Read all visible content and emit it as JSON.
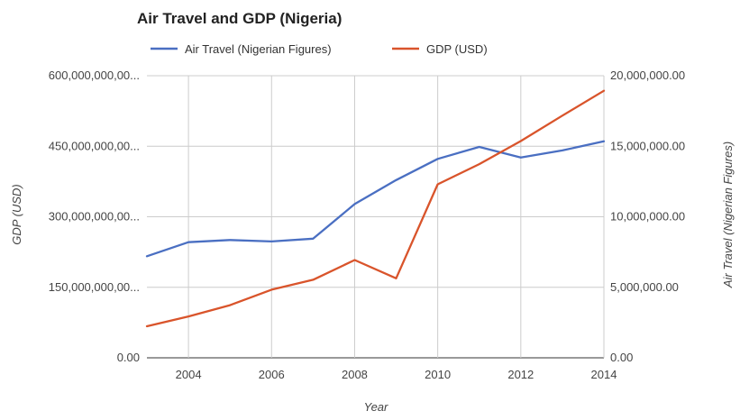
{
  "chart_data": {
    "type": "line",
    "title": "Air Travel and GDP (Nigeria)",
    "xlabel": "Year",
    "ylabel_left": "GDP (USD)",
    "ylabel_right": "Air Travel (Nigerian Figures)",
    "x": [
      2003,
      2004,
      2005,
      2006,
      2007,
      2008,
      2009,
      2010,
      2011,
      2012,
      2013,
      2014
    ],
    "x_ticks": [
      "2004",
      "2006",
      "2008",
      "2010",
      "2012",
      "2014"
    ],
    "y_left_ticks": [
      "0.00",
      "150,000,000,00...",
      "300,000,000,00...",
      "450,000,000,00...",
      "600,000,000,00..."
    ],
    "y_right_ticks": [
      "0.00",
      "5,000,000.00",
      "10,000,000.00",
      "15,000,000.00",
      "20,000,000.00"
    ],
    "ylim_left": [
      0,
      600000000000
    ],
    "ylim_right": [
      0,
      20000000
    ],
    "xlim": [
      2003,
      2014
    ],
    "grid": true,
    "legend_position": "top",
    "series": [
      {
        "name": "Air Travel (Nigerian Figures)",
        "axis": "right",
        "color": "#4a6fc2",
        "values": [
          7200000,
          8200000,
          8350000,
          8250000,
          8450000,
          10900000,
          12600000,
          14100000,
          14950000,
          14200000,
          14700000,
          15350000
        ]
      },
      {
        "name": "GDP (USD)",
        "axis": "left",
        "color": "#d9542b",
        "values": [
          67000000000,
          88000000000,
          112000000000,
          145000000000,
          166000000000,
          208000000000,
          169000000000,
          369000000000,
          412000000000,
          461000000000,
          515000000000,
          568000000000
        ]
      }
    ]
  }
}
